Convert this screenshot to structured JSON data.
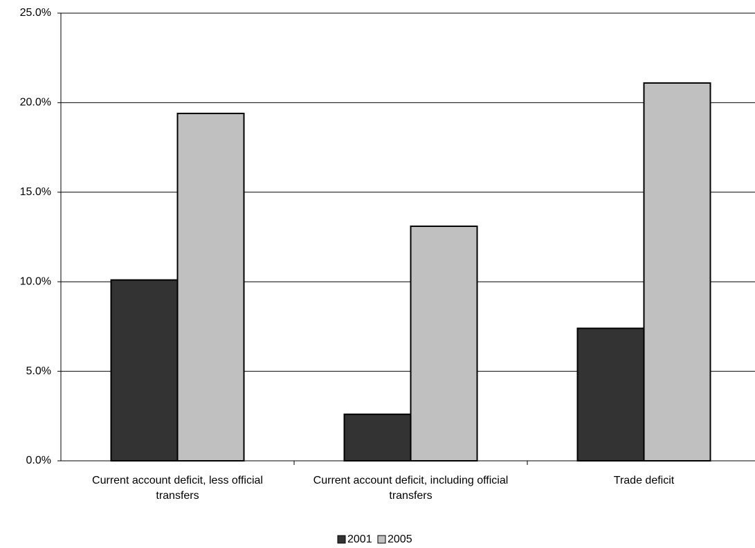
{
  "chart_data": {
    "type": "bar",
    "categories": [
      "Current account deficit, less official transfers",
      "Current account deficit, including official transfers",
      "Trade deficit"
    ],
    "series": [
      {
        "name": "2001",
        "color": "#333333",
        "values": [
          10.1,
          2.6,
          7.4
        ]
      },
      {
        "name": "2005",
        "color": "#c0c0c0",
        "values": [
          19.4,
          13.1,
          21.1
        ]
      }
    ],
    "ylim": [
      0,
      25
    ],
    "yticks": [
      {
        "value": 0,
        "label": "0.0%"
      },
      {
        "value": 5,
        "label": "5.0%"
      },
      {
        "value": 10,
        "label": "10.0%"
      },
      {
        "value": 15,
        "label": "15.0%"
      },
      {
        "value": 20,
        "label": "20.0%"
      },
      {
        "value": 25,
        "label": "25.0%"
      }
    ],
    "grid": true,
    "legend": "bottom"
  }
}
